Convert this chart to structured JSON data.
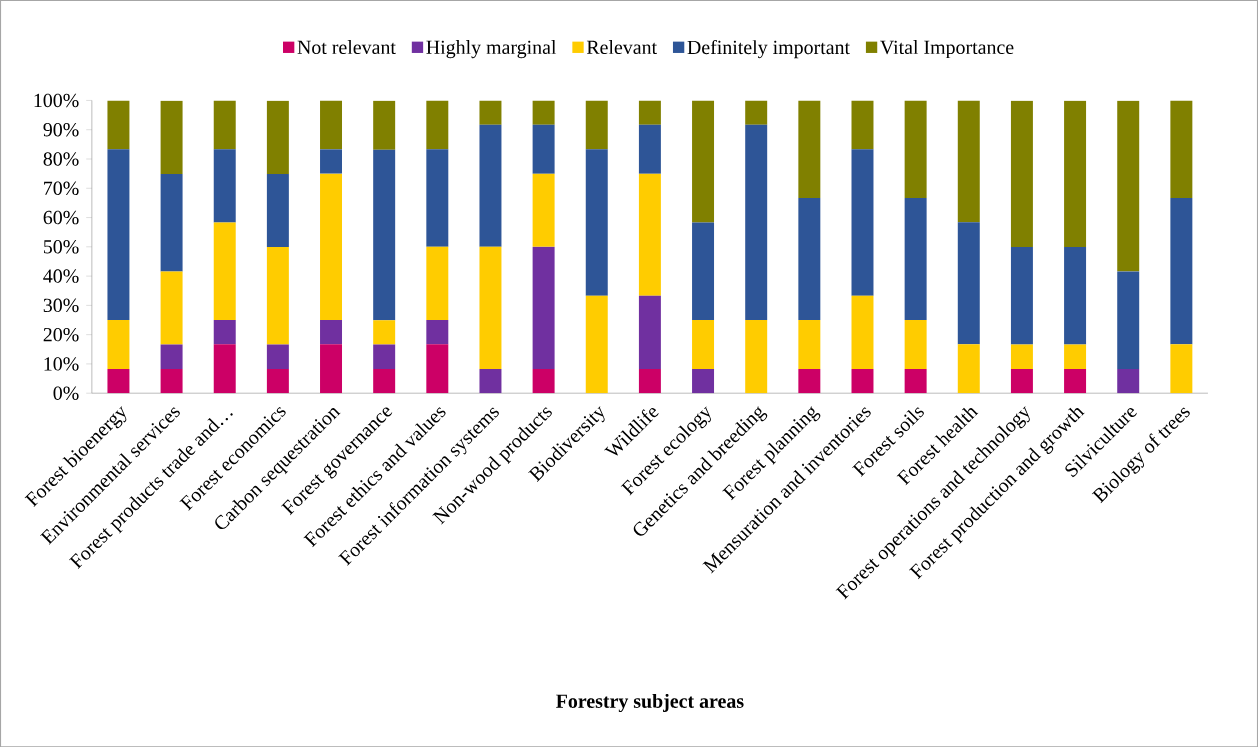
{
  "chart_data": {
    "type": "bar",
    "stacked": true,
    "xlabel": "Forestry subject areas",
    "categories": [
      "Forest bioenergy",
      "Environmental services",
      "Forest products trade and…",
      "Forest economics",
      "Carbon sequestration",
      "Forest governance",
      "Forest ethics and values",
      "Forest information systems",
      "Non-wood products",
      "Biodiversity",
      "Wildlife",
      "Forest ecology",
      "Genetics and breeding",
      "Forest planning",
      "Mensuration and inventories",
      "Forest soils",
      "Forest health",
      "Forest operations and technology",
      "Forest production and growth",
      "Silviculture",
      "Biology of trees"
    ],
    "series": [
      {
        "name": "Not relevant",
        "color": "#cc0066",
        "values": [
          8.3,
          8.3,
          16.7,
          8.3,
          16.7,
          8.3,
          16.7,
          0,
          8.3,
          0,
          8.3,
          0,
          0,
          8.3,
          8.3,
          8.3,
          0,
          8.3,
          8.3,
          0,
          0
        ]
      },
      {
        "name": "Highly marginal",
        "color": "#7030a0",
        "values": [
          0,
          8.3,
          8.3,
          8.3,
          8.3,
          8.3,
          8.3,
          8.3,
          41.7,
          0,
          25,
          8.3,
          0,
          0,
          0,
          0,
          0,
          0,
          0,
          8.3,
          0
        ]
      },
      {
        "name": "Relevant",
        "color": "#ffcc00",
        "values": [
          16.7,
          25,
          33.3,
          33.3,
          50,
          8.3,
          25,
          41.7,
          25,
          33.3,
          41.7,
          16.7,
          25,
          16.7,
          25,
          16.7,
          16.7,
          8.3,
          8.3,
          0,
          16.7
        ]
      },
      {
        "name": "Definitely important",
        "color": "#2e5597",
        "values": [
          58.3,
          33.3,
          25,
          25,
          8.3,
          58.3,
          33.3,
          41.7,
          16.7,
          50,
          16.7,
          33.3,
          66.7,
          41.7,
          50,
          41.7,
          41.7,
          33.3,
          33.3,
          33.3,
          50
        ]
      },
      {
        "name": "Vital Importance",
        "color": "#808000",
        "values": [
          16.7,
          25,
          16.7,
          25,
          16.7,
          16.7,
          16.7,
          8.3,
          8.3,
          16.7,
          8.3,
          41.7,
          8.3,
          33.3,
          16.7,
          33.3,
          41.6,
          50,
          50,
          58.3,
          33.3
        ]
      }
    ],
    "ylim": [
      0,
      100
    ],
    "yticks": [
      {
        "value": 0,
        "label": "0%"
      },
      {
        "value": 10,
        "label": "10%"
      },
      {
        "value": 20,
        "label": "20%"
      },
      {
        "value": 30,
        "label": "30%"
      },
      {
        "value": 40,
        "label": "40%"
      },
      {
        "value": 50,
        "label": "50%"
      },
      {
        "value": 60,
        "label": "60%"
      },
      {
        "value": 70,
        "label": "70%"
      },
      {
        "value": 80,
        "label": "80%"
      },
      {
        "value": 90,
        "label": "90%"
      },
      {
        "value": 100,
        "label": "100%"
      }
    ],
    "legend": "top"
  }
}
